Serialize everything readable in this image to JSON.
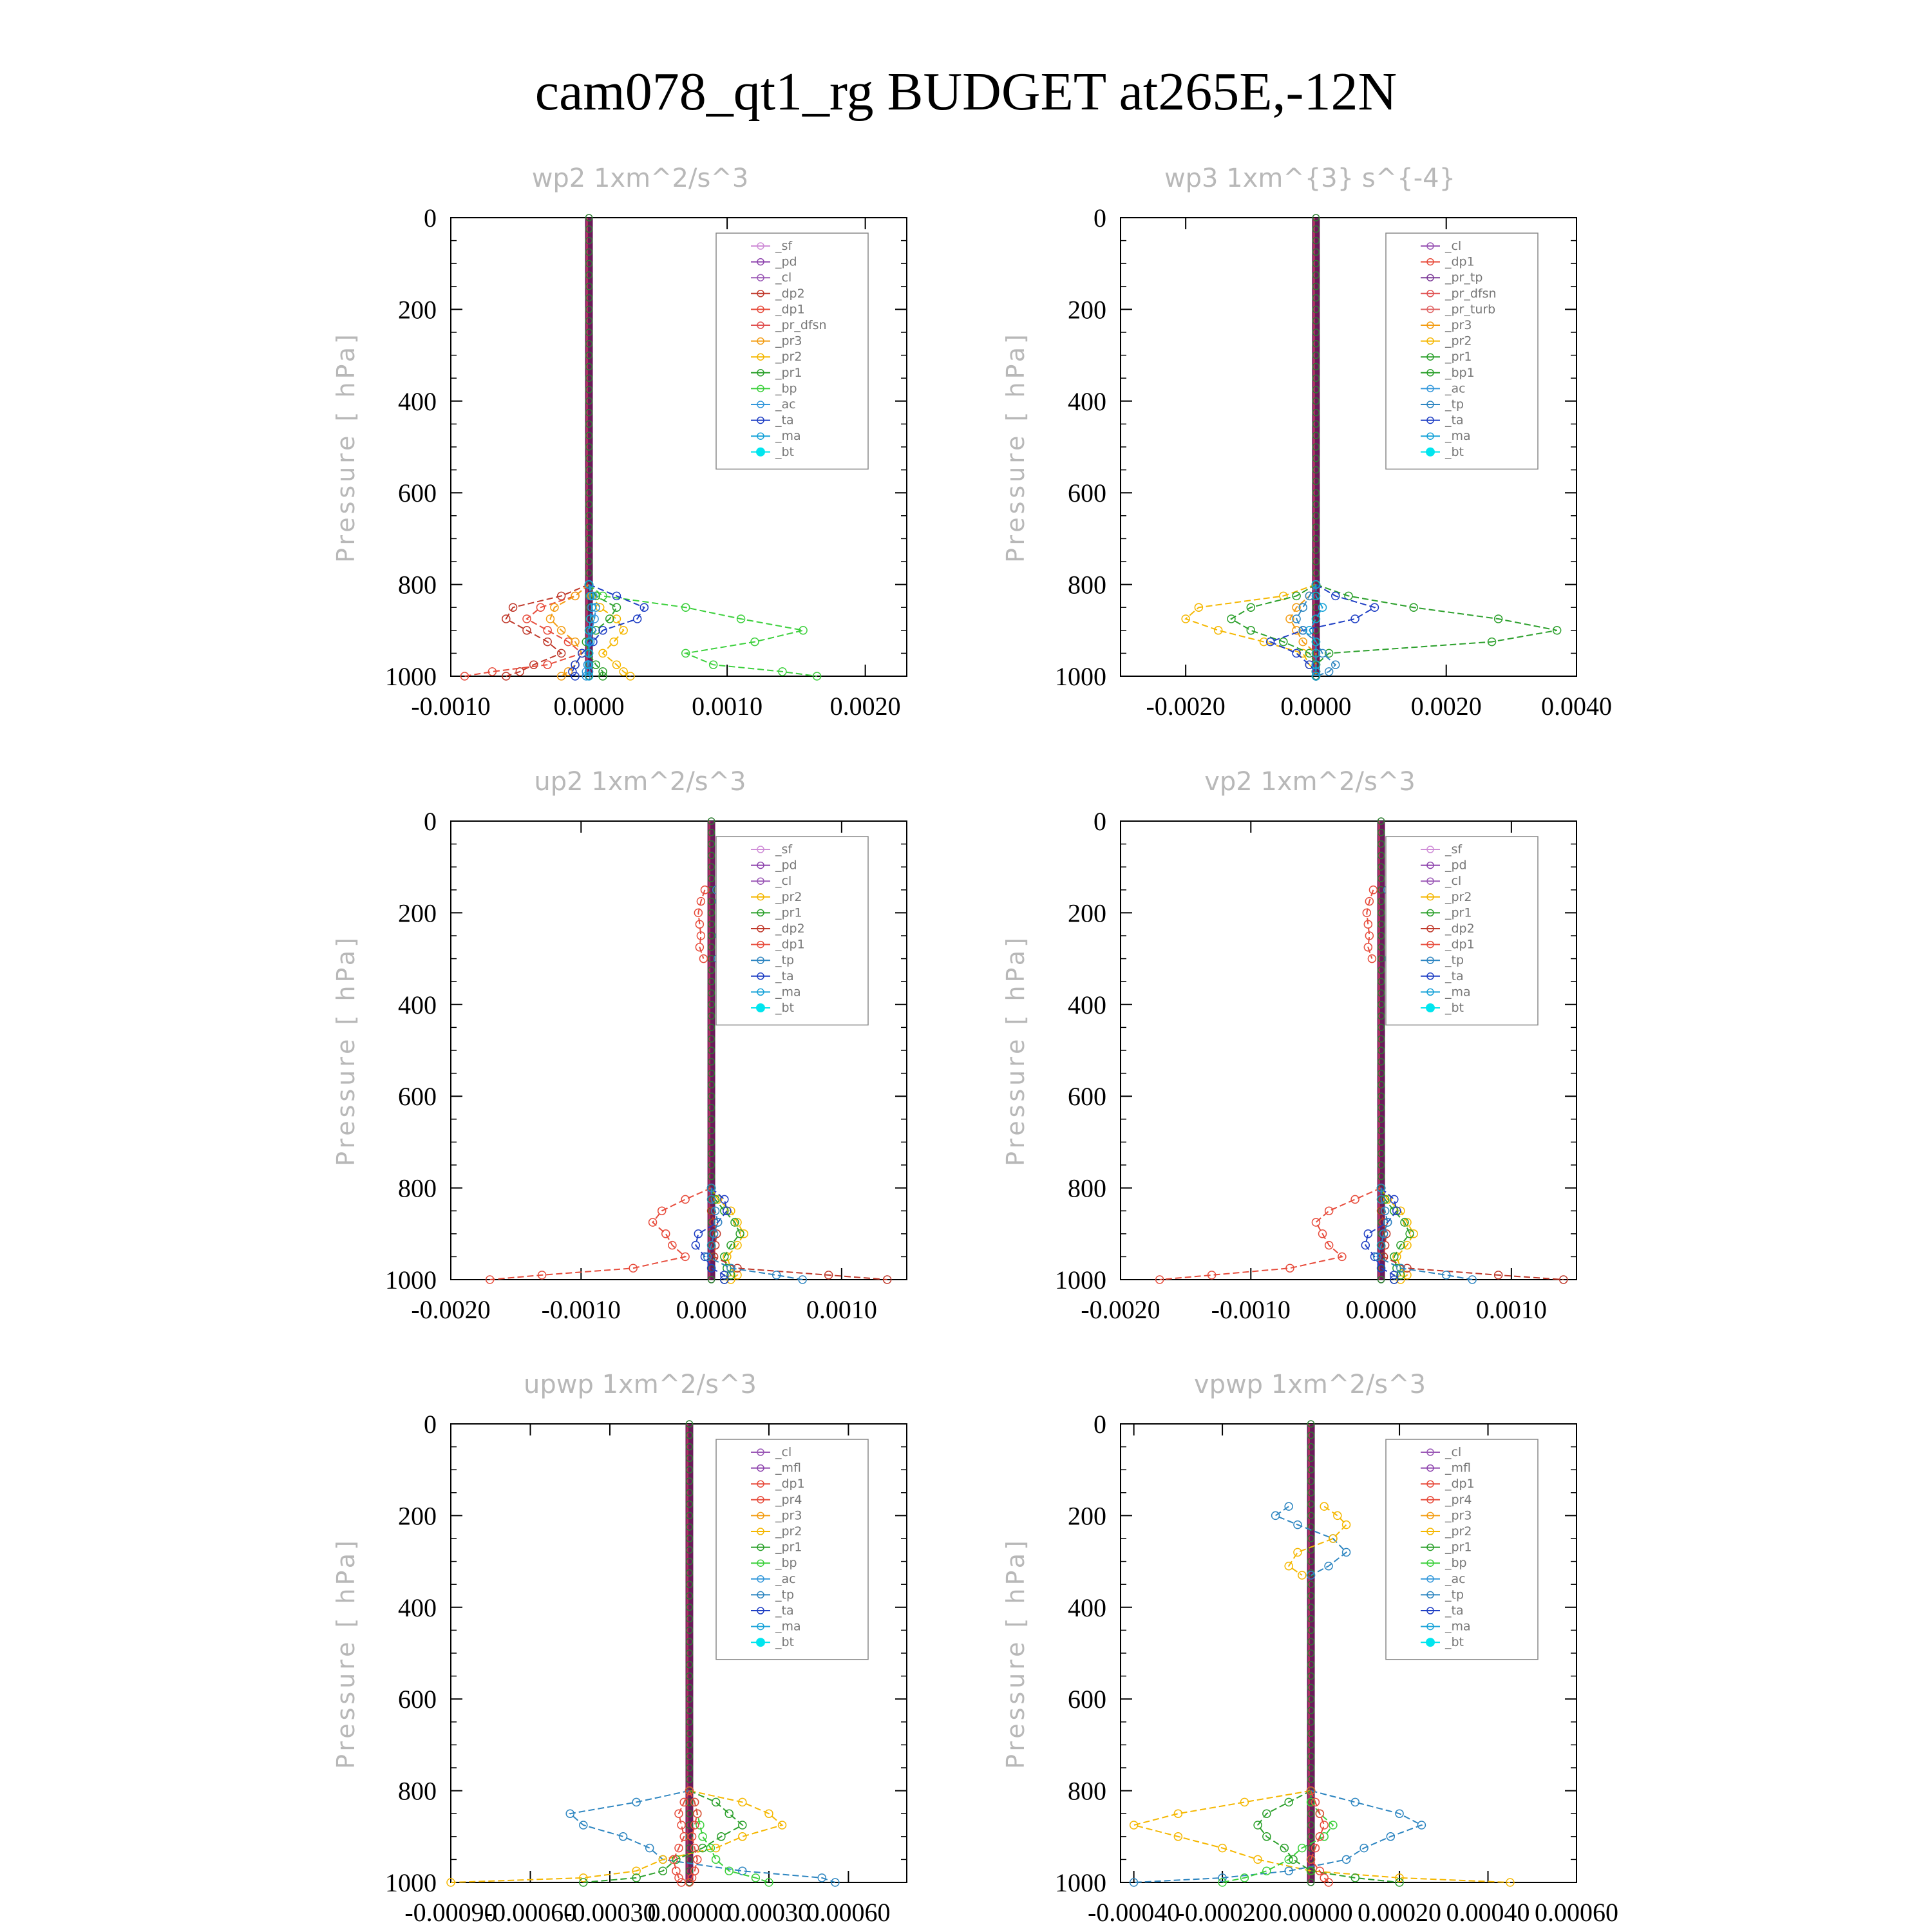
{
  "main_title": "cam078_qt1_rg  BUDGET at265E,-12N",
  "colors": {
    "_sf": "#d08fd8",
    "_pd": "#8e44ad",
    "_cl": "#9b59b6",
    "_dp2": "#c0392b",
    "_dp1": "#e74c3c",
    "_pr_dfsn": "#e05050",
    "_pr3": "#f39c12",
    "_pr2": "#f5b700",
    "_pr1": "#2ca02c",
    "_bp": "#3cd03c",
    "_ac": "#3498db",
    "_ta": "#1f3fc4",
    "_ma": "#17a2d8",
    "_bt": "#00e5ee",
    "_pr_tp": "#7d3c98",
    "_pr_turb": "#e06666",
    "_bp1": "#2ca02c",
    "_tp": "#2e86c1",
    "_mfl": "#8e44ad",
    "_pr4": "#e74c3c"
  },
  "chart_data": [
    {
      "type": "line",
      "title": "wp2  1xm^2/s^3",
      "ylabel": "Pressure [ hPa]",
      "xlim": [
        -0.001,
        0.0023
      ],
      "ylim": [
        1000,
        0
      ],
      "xticks": [
        "-0.0010",
        "0.0000",
        "0.0010",
        "0.0020"
      ],
      "xtick_values": [
        -0.001,
        0,
        0.001,
        0.002
      ],
      "yticks": [
        "0",
        "200",
        "400",
        "600",
        "800",
        "1000"
      ],
      "pressure": [
        800,
        825,
        850,
        875,
        900,
        925,
        950,
        975,
        990,
        1000
      ],
      "legend": [
        "_sf",
        "_pd",
        "_cl",
        "_dp2",
        "_dp1",
        "_pr_dfsn",
        "_pr3",
        "_pr2",
        "_pr1",
        "_bp",
        "_ac",
        "_ta",
        "_ma",
        "_bt"
      ],
      "series": [
        {
          "name": "_dp2",
          "values": [
            0,
            -0.0002,
            -0.00055,
            -0.0006,
            -0.00045,
            -0.0003,
            -0.0002,
            -0.0004,
            -0.0005,
            -0.0006
          ]
        },
        {
          "name": "_dp1",
          "values": [
            0,
            -0.0001,
            -0.00035,
            -0.00045,
            -0.0003,
            -0.00015,
            -5e-05,
            -0.0003,
            -0.0007,
            -0.0009
          ]
        },
        {
          "name": "_pr3",
          "values": [
            0,
            -0.0001,
            -0.00025,
            -0.00028,
            -0.0002,
            -0.0001,
            -5e-05,
            -0.0001,
            -0.00015,
            -0.0002
          ]
        },
        {
          "name": "_pr2",
          "values": [
            0,
            2e-05,
            8e-05,
            0.0002,
            0.00025,
            0.00018,
            0.0001,
            0.0002,
            0.00025,
            0.0003
          ]
        },
        {
          "name": "_pr1",
          "values": [
            0,
            5e-05,
            0.0002,
            0.00015,
            5e-05,
            -2e-05,
            0,
            5e-05,
            0.0001,
            0.0001
          ]
        },
        {
          "name": "_bp",
          "values": [
            0,
            0.0001,
            0.0007,
            0.0011,
            0.00155,
            0.0012,
            0.0007,
            0.0009,
            0.0014,
            0.00165
          ]
        },
        {
          "name": "_ac",
          "values": [
            0,
            3e-05,
            5e-05,
            4e-05,
            2e-05,
            1e-05,
            0,
            -1e-05,
            -2e-05,
            -2e-05
          ]
        },
        {
          "name": "_ta",
          "values": [
            0,
            0.0002,
            0.0004,
            0.00035,
            0.0001,
            3e-05,
            -5e-05,
            -0.0001,
            -0.00012,
            -0.0001
          ]
        },
        {
          "name": "_ma",
          "values": [
            0,
            1e-05,
            2e-05,
            1e-05,
            0,
            0,
            0,
            0,
            0,
            0
          ]
        }
      ]
    },
    {
      "type": "line",
      "title": "wp3  1xm^{3} s^{-4}",
      "ylabel": "Pressure [ hPa]",
      "xlim": [
        -0.003,
        0.004
      ],
      "ylim": [
        1000,
        0
      ],
      "xticks": [
        "-0.0020",
        "0.0000",
        "0.0020",
        "0.0040"
      ],
      "xtick_values": [
        -0.002,
        0,
        0.002,
        0.004
      ],
      "yticks": [
        "0",
        "200",
        "400",
        "600",
        "800",
        "1000"
      ],
      "pressure": [
        800,
        825,
        850,
        875,
        900,
        925,
        950,
        975,
        990,
        1000
      ],
      "legend": [
        "_cl",
        "_dp1",
        "_pr_tp",
        "_pr_dfsn",
        "_pr_turb",
        "_pr3",
        "_pr2",
        "_pr1",
        "_bp1",
        "_ac",
        "_tp",
        "_ta",
        "_ma",
        "_bt"
      ],
      "series": [
        {
          "name": "_pr2",
          "values": [
            0,
            -0.0005,
            -0.0018,
            -0.002,
            -0.0015,
            -0.0008,
            -0.0002,
            -0.0001,
            0,
            0
          ]
        },
        {
          "name": "_pr1",
          "values": [
            0,
            -0.0003,
            -0.001,
            -0.0013,
            -0.001,
            -0.0005,
            -0.0001,
            0,
            0,
            0
          ]
        },
        {
          "name": "_pr3",
          "values": [
            0,
            -0.0001,
            -0.0003,
            -0.0004,
            -0.0003,
            -0.0002,
            0,
            0,
            0,
            0
          ]
        },
        {
          "name": "_bp1",
          "values": [
            0,
            0.0005,
            0.0015,
            0.0028,
            0.0037,
            0.0027,
            0.0002,
            0,
            0,
            0
          ]
        },
        {
          "name": "_ta",
          "values": [
            0,
            0.0003,
            0.0009,
            0.0006,
            -0.0002,
            -0.0007,
            -0.0003,
            -0.0001,
            0,
            0
          ]
        },
        {
          "name": "_tp",
          "values": [
            0,
            -0.0001,
            -0.0002,
            -0.0003,
            -0.0002,
            0,
            0.0001,
            0.0003,
            0.0002,
            0
          ]
        },
        {
          "name": "_ma",
          "values": [
            0,
            0,
            0.0001,
            0,
            -0.0001,
            0,
            0,
            0,
            0,
            0
          ]
        }
      ]
    },
    {
      "type": "line",
      "title": "up2  1xm^2/s^3",
      "ylabel": "Pressure [ hPa]",
      "xlim": [
        -0.002,
        0.0015
      ],
      "ylim": [
        1000,
        0
      ],
      "xticks": [
        "-0.0020",
        "-0.0010",
        "0.0000",
        "0.0010"
      ],
      "xtick_values": [
        -0.002,
        -0.001,
        0,
        0.001
      ],
      "yticks": [
        "0",
        "200",
        "400",
        "600",
        "800",
        "1000"
      ],
      "pressure": [
        800,
        825,
        850,
        875,
        900,
        925,
        950,
        975,
        990,
        1000
      ],
      "upper_pressure": [
        150,
        175,
        200,
        225,
        250,
        275,
        300
      ],
      "legend": [
        "_sf",
        "_pd",
        "_cl",
        "_pr2",
        "_pr1",
        "_dp2",
        "_dp1",
        "_tp",
        "_ta",
        "_ma",
        "_bt"
      ],
      "series": [
        {
          "name": "_dp1",
          "values": [
            0,
            -0.0002,
            -0.00038,
            -0.00045,
            -0.00035,
            -0.0003,
            -0.0002,
            -0.0006,
            -0.0013,
            -0.0017
          ]
        },
        {
          "name": "_pr2",
          "values": [
            0,
            5e-05,
            0.00015,
            0.0002,
            0.00025,
            0.0002,
            0.00012,
            0.00015,
            0.0002,
            0.00015
          ]
        },
        {
          "name": "_pr1",
          "values": [
            0,
            3e-05,
            0.0001,
            0.00018,
            0.00022,
            0.00015,
            0.0001,
            0.00012,
            0.00015,
            0.0001
          ]
        },
        {
          "name": "_dp2",
          "values": [
            0,
            0,
            0,
            2e-05,
            4e-05,
            3e-05,
            2e-05,
            0.0002,
            0.0009,
            0.00135
          ]
        },
        {
          "name": "_ta",
          "values": [
            0,
            0.0001,
            0.00012,
            5e-05,
            -0.0001,
            -0.00012,
            -5e-05,
            0,
            0.0001,
            0.0001
          ]
        },
        {
          "name": "_tp",
          "values": [
            0,
            0,
            3e-05,
            5e-05,
            2e-05,
            0,
            -3e-05,
            0.00015,
            0.0005,
            0.0007
          ]
        }
      ],
      "upper_series": [
        {
          "name": "_dp1",
          "values": [
            -5e-05,
            -8e-05,
            -0.0001,
            -9e-05,
            -8e-05,
            -9e-05,
            -6e-05
          ]
        },
        {
          "name": "_tp",
          "values": [
            4e-05,
            6e-05,
            8e-05,
            7e-05,
            6e-05,
            7e-05,
            5e-05
          ]
        }
      ]
    },
    {
      "type": "line",
      "title": "vp2  1xm^2/s^3",
      "ylabel": "Pressure [ hPa]",
      "xlim": [
        -0.002,
        0.0015
      ],
      "ylim": [
        1000,
        0
      ],
      "xticks": [
        "-0.0020",
        "-0.0010",
        "0.0000",
        "0.0010"
      ],
      "xtick_values": [
        -0.002,
        -0.001,
        0,
        0.001
      ],
      "yticks": [
        "0",
        "200",
        "400",
        "600",
        "800",
        "1000"
      ],
      "pressure": [
        800,
        825,
        850,
        875,
        900,
        925,
        950,
        975,
        990,
        1000
      ],
      "upper_pressure": [
        150,
        175,
        200,
        225,
        250,
        275,
        300
      ],
      "legend": [
        "_sf",
        "_pd",
        "_cl",
        "_pr2",
        "_pr1",
        "_dp2",
        "_dp1",
        "_tp",
        "_ta",
        "_ma",
        "_bt"
      ],
      "series": [
        {
          "name": "_dp1",
          "values": [
            0,
            -0.0002,
            -0.0004,
            -0.0005,
            -0.00045,
            -0.0004,
            -0.0003,
            -0.0007,
            -0.0013,
            -0.0017
          ]
        },
        {
          "name": "_pr2",
          "values": [
            0,
            5e-05,
            0.00015,
            0.0002,
            0.00025,
            0.0002,
            0.00012,
            0.00015,
            0.0002,
            0.00015
          ]
        },
        {
          "name": "_pr1",
          "values": [
            0,
            3e-05,
            0.0001,
            0.00018,
            0.00022,
            0.00015,
            0.0001,
            0.00012,
            0.00015,
            0.0001
          ]
        },
        {
          "name": "_dp2",
          "values": [
            0,
            0,
            0,
            2e-05,
            4e-05,
            3e-05,
            2e-05,
            0.0002,
            0.0009,
            0.0014
          ]
        },
        {
          "name": "_ta",
          "values": [
            0,
            0.0001,
            0.00012,
            5e-05,
            -0.0001,
            -0.00012,
            -5e-05,
            0,
            0.0001,
            0.0001
          ]
        },
        {
          "name": "_tp",
          "values": [
            0,
            0,
            3e-05,
            5e-05,
            2e-05,
            0,
            -3e-05,
            0.00015,
            0.0005,
            0.0007
          ]
        }
      ],
      "upper_series": [
        {
          "name": "_dp1",
          "values": [
            -6e-05,
            -9e-05,
            -0.00011,
            -0.0001,
            -9e-05,
            -0.0001,
            -7e-05
          ]
        },
        {
          "name": "_tp",
          "values": [
            5e-05,
            7e-05,
            9e-05,
            8e-05,
            7e-05,
            8e-05,
            6e-05
          ]
        }
      ]
    },
    {
      "type": "line",
      "title": "upwp  1xm^2/s^3",
      "ylabel": "Pressure [ hPa]",
      "xlim": [
        -0.0009,
        0.00082
      ],
      "ylim": [
        1000,
        0
      ],
      "xticks": [
        "-0.00090",
        "-0.00060",
        "-0.00030",
        "0.00000",
        "0.00030",
        "0.00060"
      ],
      "xtick_values": [
        -0.0009,
        -0.0006,
        -0.0003,
        0,
        0.0003,
        0.0006
      ],
      "yticks": [
        "0",
        "200",
        "400",
        "600",
        "800",
        "1000"
      ],
      "pressure": [
        800,
        825,
        850,
        875,
        900,
        925,
        950,
        975,
        990,
        1000
      ],
      "legend": [
        "_cl",
        "_mfl",
        "_dp1",
        "_pr4",
        "_pr3",
        "_pr2",
        "_pr1",
        "_bp",
        "_ac",
        "_tp",
        "_ta",
        "_ma",
        "_bt"
      ],
      "series": [
        {
          "name": "_tp",
          "values": [
            0,
            -0.0002,
            -0.00045,
            -0.0004,
            -0.00025,
            -0.00015,
            -0.0001,
            0.0002,
            0.0005,
            0.00055
          ]
        },
        {
          "name": "_pr2",
          "values": [
            0,
            0.0002,
            0.0003,
            0.00035,
            0.0002,
            0.0001,
            -0.0001,
            -0.0002,
            -0.0004,
            -0.0009
          ]
        },
        {
          "name": "_pr1",
          "values": [
            0,
            0.0001,
            0.00015,
            0.0002,
            0.00012,
            5e-05,
            -5e-05,
            -0.0001,
            -0.0002,
            -0.0004
          ]
        },
        {
          "name": "_bp",
          "values": [
            0,
            2e-05,
            3e-05,
            4e-05,
            5e-05,
            8e-05,
            0.0001,
            0.00015,
            0.00025,
            0.0003
          ]
        },
        {
          "name": "_dp1",
          "values": [
            0,
            -2e-05,
            -4e-05,
            -3e-05,
            -2e-05,
            -4e-05,
            -6e-05,
            -5e-05,
            -4e-05,
            -3e-05
          ]
        },
        {
          "name": "_pr4",
          "values": [
            0,
            2e-05,
            3e-05,
            2e-05,
            1e-05,
            2e-05,
            3e-05,
            2e-05,
            1e-05,
            0
          ]
        }
      ]
    },
    {
      "type": "line",
      "title": "vpwp  1xm^2/s^3",
      "ylabel": "Pressure [ hPa]",
      "xlim": [
        -0.00043,
        0.0006
      ],
      "ylim": [
        1000,
        0
      ],
      "xticks": [
        "-0.00040",
        "-0.00020",
        "0.00000",
        "0.00020",
        "0.00040",
        "0.00060"
      ],
      "xtick_values": [
        -0.0004,
        -0.0002,
        0,
        0.0002,
        0.0004,
        0.0006
      ],
      "yticks": [
        "0",
        "200",
        "400",
        "600",
        "800",
        "1000"
      ],
      "pressure": [
        800,
        825,
        850,
        875,
        900,
        925,
        950,
        975,
        990,
        1000
      ],
      "upper_pressure": [
        180,
        200,
        220,
        250,
        280,
        310,
        330
      ],
      "legend": [
        "_cl",
        "_mfl",
        "_dp1",
        "_pr4",
        "_pr3",
        "_pr2",
        "_pr1",
        "_bp",
        "_ac",
        "_tp",
        "_ta",
        "_ma",
        "_bt"
      ],
      "series": [
        {
          "name": "_pr2",
          "values": [
            0,
            -0.00015,
            -0.0003,
            -0.0004,
            -0.0003,
            -0.0002,
            -0.00012,
            0,
            0.0002,
            0.00045
          ]
        },
        {
          "name": "_tp",
          "values": [
            0,
            0.0001,
            0.0002,
            0.00025,
            0.00018,
            0.00012,
            8e-05,
            -5e-05,
            -0.0002,
            -0.0004
          ]
        },
        {
          "name": "_bp",
          "values": [
            0,
            0,
            2e-05,
            5e-05,
            3e-05,
            -2e-05,
            -5e-05,
            -0.0001,
            -0.00015,
            -0.0002
          ]
        },
        {
          "name": "_pr1",
          "values": [
            0,
            -5e-05,
            -0.0001,
            -0.00012,
            -0.0001,
            -6e-05,
            -4e-05,
            0,
            0.0001,
            0.0002
          ]
        },
        {
          "name": "_dp1",
          "values": [
            0,
            1e-05,
            2e-05,
            3e-05,
            2e-05,
            1e-05,
            0,
            2e-05,
            3e-05,
            4e-05
          ]
        }
      ],
      "upper_series": [
        {
          "name": "_tp",
          "values": [
            -5e-05,
            -8e-05,
            -3e-05,
            5e-05,
            8e-05,
            4e-05,
            0.0
          ]
        },
        {
          "name": "_pr2",
          "values": [
            3e-05,
            6e-05,
            8e-05,
            5e-05,
            -3e-05,
            -5e-05,
            -2e-05
          ]
        }
      ]
    }
  ]
}
